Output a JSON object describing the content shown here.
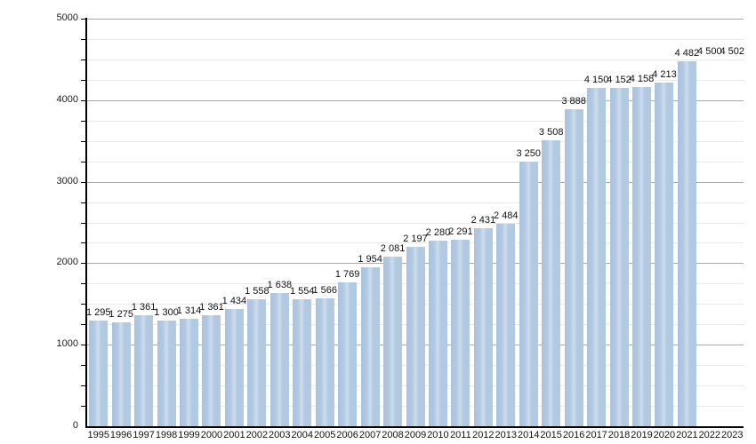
{
  "chart_data": {
    "type": "bar",
    "title": "",
    "xlabel": "",
    "ylabel": "",
    "categories": [
      "1995",
      "1996",
      "1997",
      "1998",
      "1999",
      "2000",
      "2001",
      "2002",
      "2003",
      "2004",
      "2005",
      "2006",
      "2007",
      "2008",
      "2009",
      "2010",
      "2011",
      "2012",
      "2013",
      "2014",
      "2015",
      "2016",
      "2017",
      "2018",
      "2019",
      "2020",
      "2021",
      "2022",
      "2023"
    ],
    "values": [
      1295,
      1275,
      1361,
      1300,
      1314,
      1361,
      1434,
      1558,
      1638,
      1554,
      1566,
      1769,
      1954,
      2081,
      2197,
      2280,
      2291,
      2431,
      2484,
      3250,
      3508,
      3888,
      4150,
      4152,
      4158,
      4213,
      4482,
      4500,
      4502
    ],
    "value_labels": [
      "1 295",
      "1 275",
      "1 361",
      "1 300",
      "1 314",
      "1 361",
      "1 434",
      "1 558",
      "1 638",
      "1 554",
      "1 566",
      "1 769",
      "1 954",
      "2 081",
      "2 197",
      "2 280",
      "2 291",
      "2 431",
      "2 484",
      "3 250",
      "3 508",
      "3 888",
      "4 150",
      "4 152",
      "4 158",
      "4 213",
      "4 482",
      "4 500",
      "4 502"
    ],
    "bars_not_drawn": [
      "2022",
      "2023"
    ],
    "ylim": [
      0,
      5000
    ],
    "ytick_labels": [
      "0",
      "1000",
      "2000",
      "3000",
      "4000",
      "5000"
    ],
    "ytick_major_step": 1000,
    "ytick_minor_step": 250,
    "grid": "major and minor horizontal",
    "legend": "none",
    "colors": {
      "bar": "#b2c9e2",
      "bar_highlight": "#cddded",
      "bar_edge": "#aac3de",
      "major_grid": "#aaaaaa",
      "minor_grid": "#e9e9e9",
      "axis": "#000000",
      "text": "#111111"
    }
  }
}
